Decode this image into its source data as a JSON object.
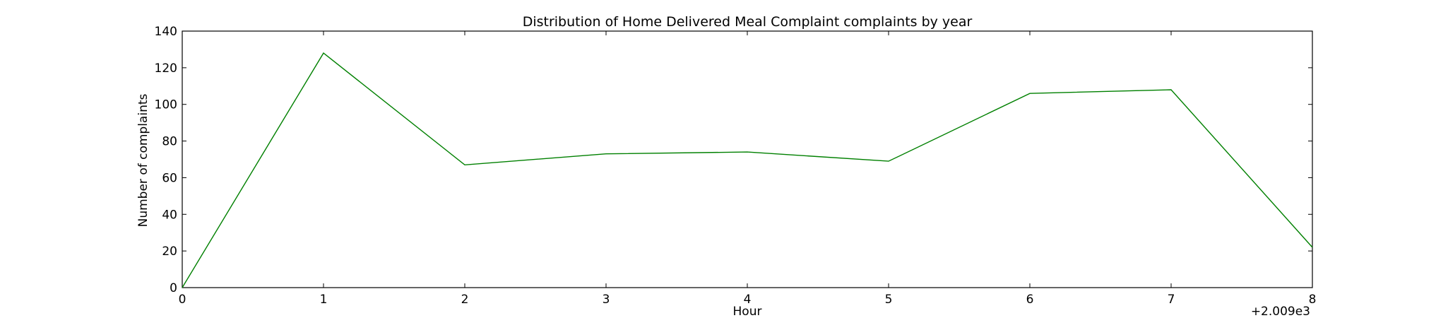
{
  "chart_data": {
    "type": "line",
    "title": "Distribution of  Home Delivered Meal Complaint complaints by year",
    "xlabel": "Hour",
    "ylabel": "Number of complaints",
    "x_offset_label": "+2.009e3",
    "x": [
      0,
      1,
      2,
      3,
      4,
      5,
      6,
      7,
      8
    ],
    "series": [
      {
        "color": "#008000",
        "values": [
          0,
          128,
          67,
          73,
          74,
          69,
          106,
          108,
          22
        ]
      }
    ],
    "xlim": [
      0,
      8
    ],
    "ylim": [
      0,
      140
    ],
    "xticks": [
      0,
      1,
      2,
      3,
      4,
      5,
      6,
      7,
      8
    ],
    "yticks": [
      0,
      20,
      40,
      60,
      80,
      100,
      120,
      140
    ],
    "grid": false,
    "legend": "none"
  }
}
